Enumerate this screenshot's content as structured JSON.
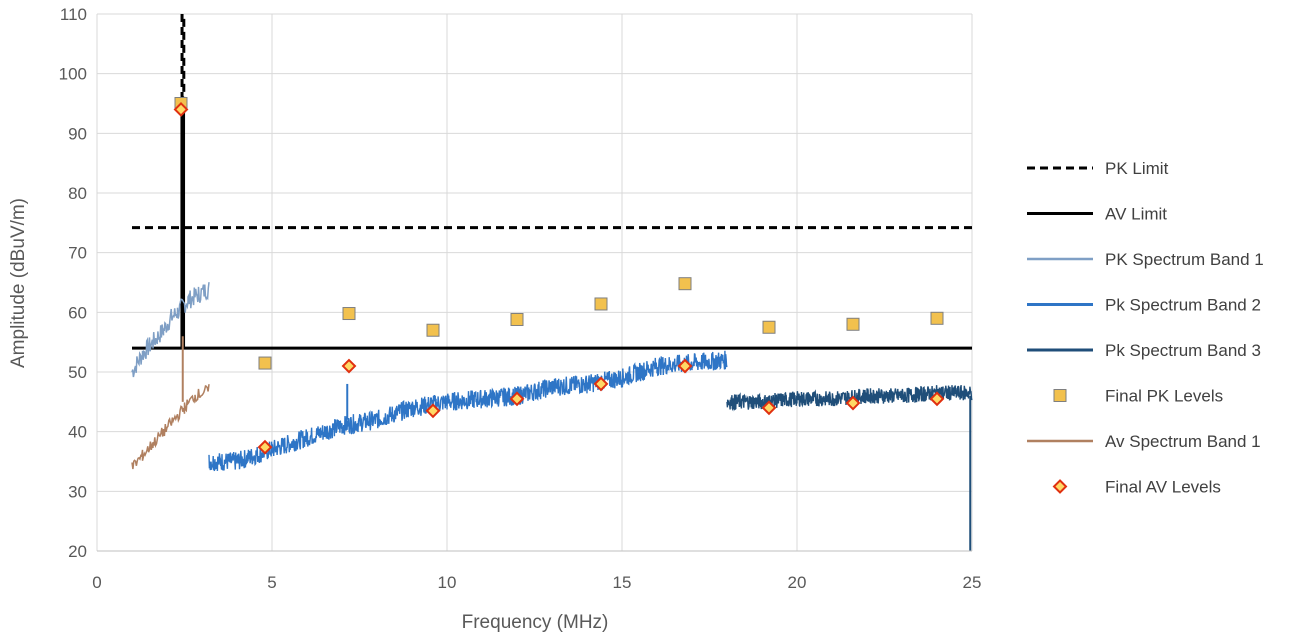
{
  "chart_data": {
    "type": "line",
    "title": "",
    "xlabel": "Frequency (MHz)",
    "ylabel": "Amplitude (dBuV/m)",
    "xlim": [
      0,
      25
    ],
    "ylim": [
      20,
      110
    ],
    "x_ticks": [
      0,
      5,
      10,
      15,
      20,
      25
    ],
    "y_ticks": [
      20,
      30,
      40,
      50,
      60,
      70,
      80,
      90,
      100,
      110
    ],
    "grid": true,
    "legend_position": "right",
    "series": [
      {
        "name": "PK Limit",
        "style": "dashed",
        "color": "#000000",
        "points": [
          [
            2.4,
            110
          ],
          [
            2.4,
            96
          ],
          [
            2.48,
            96
          ],
          [
            2.48,
            110
          ],
          [
            2.48,
            74.2
          ],
          [
            25,
            74.2
          ]
        ],
        "horizontal_start": [
          1.0,
          74.2
        ]
      },
      {
        "name": "AV Limit",
        "style": "solid",
        "color": "#000000",
        "points": [
          [
            1.0,
            54
          ],
          [
            25,
            54
          ]
        ],
        "spike": [
          [
            2.4,
            54
          ],
          [
            2.4,
            95
          ],
          [
            2.5,
            95
          ],
          [
            2.5,
            54
          ]
        ]
      },
      {
        "name": "PK Spectrum Band 1",
        "style": "solid",
        "color": "#7f9fc5",
        "points": [
          [
            1.0,
            50
          ],
          [
            1.3,
            53
          ],
          [
            1.6,
            55
          ],
          [
            1.9,
            57
          ],
          [
            2.1,
            59
          ],
          [
            2.3,
            60
          ],
          [
            2.6,
            62
          ],
          [
            2.9,
            63
          ],
          [
            3.2,
            64
          ]
        ]
      },
      {
        "name": "Pk Spectrum Band 2",
        "style": "solid",
        "color": "#2e75c6",
        "points": [
          [
            3.2,
            35
          ],
          [
            4.0,
            35
          ],
          [
            5.0,
            37
          ],
          [
            6.0,
            39
          ],
          [
            7.0,
            41
          ],
          [
            8.0,
            42
          ],
          [
            9.0,
            44
          ],
          [
            10.0,
            45
          ],
          [
            11.0,
            45.5
          ],
          [
            12.0,
            46
          ],
          [
            13.0,
            47.5
          ],
          [
            14.0,
            48
          ],
          [
            15.0,
            49
          ],
          [
            16.0,
            51
          ],
          [
            17.0,
            51.5
          ],
          [
            18.0,
            52
          ]
        ]
      },
      {
        "name": "Pk Spectrum Band 3",
        "style": "solid",
        "color": "#1f4e79",
        "points": [
          [
            18.0,
            45
          ],
          [
            19.0,
            45
          ],
          [
            20.0,
            45.5
          ],
          [
            21.0,
            45.5
          ],
          [
            22.0,
            46
          ],
          [
            23.0,
            46
          ],
          [
            24.0,
            46.5
          ],
          [
            25.0,
            46.5
          ]
        ]
      },
      {
        "name": "Final PK Levels",
        "style": "marker-square",
        "color": "#f2c14e",
        "points": [
          [
            2.4,
            95
          ],
          [
            4.8,
            51.5
          ],
          [
            7.2,
            59.8
          ],
          [
            9.6,
            57
          ],
          [
            12.0,
            58.8
          ],
          [
            14.4,
            61.4
          ],
          [
            16.8,
            64.8
          ],
          [
            19.2,
            57.5
          ],
          [
            21.6,
            58
          ],
          [
            24.0,
            59
          ]
        ]
      },
      {
        "name": "Av Spectrum Band 1",
        "style": "solid",
        "color": "#b08060",
        "points": [
          [
            1.0,
            34
          ],
          [
            1.3,
            36
          ],
          [
            1.6,
            38
          ],
          [
            1.9,
            40
          ],
          [
            2.2,
            42
          ],
          [
            2.5,
            44
          ],
          [
            2.8,
            46
          ],
          [
            3.2,
            47
          ]
        ]
      },
      {
        "name": "Final AV Levels",
        "style": "marker-diamond",
        "color": "#ffd966",
        "stroke": "#e03010",
        "points": [
          [
            2.4,
            94
          ],
          [
            4.8,
            37.4
          ],
          [
            7.2,
            51
          ],
          [
            9.6,
            43.5
          ],
          [
            12.0,
            45.5
          ],
          [
            14.4,
            48
          ],
          [
            16.8,
            51
          ],
          [
            19.2,
            44
          ],
          [
            21.6,
            44.8
          ],
          [
            24.0,
            45.5
          ]
        ]
      }
    ]
  }
}
